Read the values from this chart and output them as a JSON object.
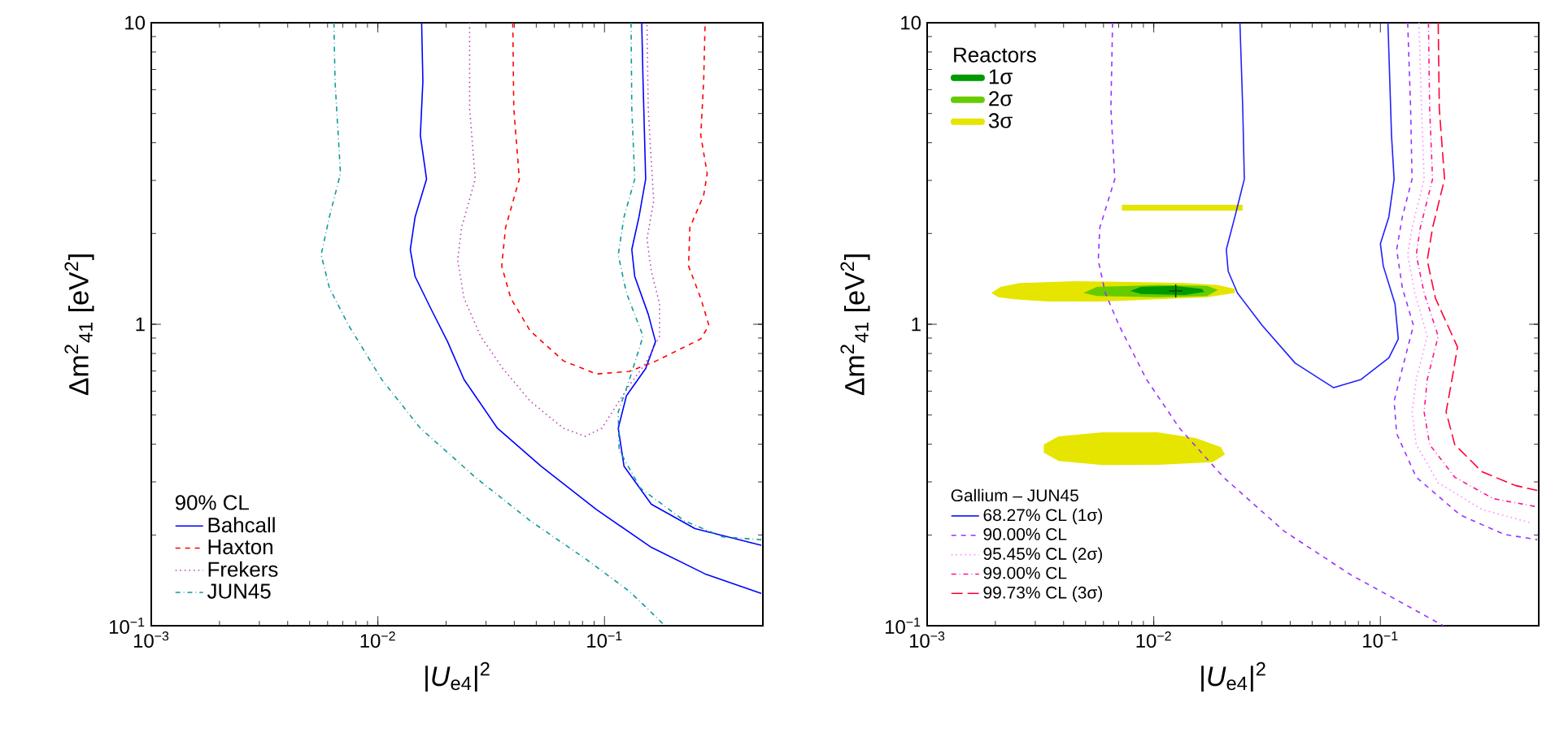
{
  "chart_data": [
    {
      "type": "line",
      "log": "xy",
      "xlabel": "|*U*$_{e4}$|$^{2}$",
      "ylabel": "Δm$^{2}$$_{41}$   [eV$^{2}$]",
      "legend": "bottom left",
      "legend_title": "90% CL",
      "xlim": [
        0.001,
        0.5
      ],
      "ylim": [
        0.1,
        10
      ],
      "xticks": [
        {
          "value": 0.001,
          "label": "10$^{−3}$"
        },
        {
          "value": 0.01,
          "label": "10$^{−2}$"
        },
        {
          "value": 0.1,
          "label": "10$^{−1}$"
        }
      ],
      "yticks": [
        {
          "value": 0.1,
          "label": "10$^{−1}$"
        },
        1,
        10
      ],
      "series": [
        {
          "name": "Bahcall",
          "color": "#0000ff",
          "line_style": "solid",
          "x": [
            0.0156,
            0.0158,
            0.0154,
            0.0164,
            0.0146,
            0.0139,
            0.0146,
            0.0172,
            0.0203,
            0.024,
            0.0337,
            0.0526,
            0.092,
            0.161,
            0.281,
            0.492,
            null,
            0.146,
            0.148,
            0.152,
            0.142,
            0.132,
            0.136,
            0.156,
            0.168,
            0.152,
            0.125,
            0.115,
            0.122,
            0.161,
            0.251,
            0.492
          ],
          "values": [
            10,
            6.4,
            4.23,
            3.03,
            2.27,
            1.77,
            1.44,
            1.12,
            0.876,
            0.656,
            0.452,
            0.338,
            0.243,
            0.182,
            0.148,
            0.128,
            null,
            10,
            6.4,
            3.03,
            2.27,
            1.77,
            1.44,
            1.08,
            0.876,
            0.713,
            0.579,
            0.452,
            0.338,
            0.253,
            0.21,
            0.185
          ]
        },
        {
          "name": "Haxton",
          "color": "#ff0000",
          "line_style": "dashed",
          "x": [
            0.0394,
            0.0398,
            0.0421,
            0.0366,
            0.0352,
            0.0386,
            0.047,
            0.0658,
            0.092,
            0.129,
            0.17,
            0.266,
            0.289,
            0.266,
            0.235,
            0.238,
            0.274,
            0.284,
            0.266,
            0.274,
            0.278
          ],
          "values": [
            10,
            5.2,
            3.03,
            2.09,
            1.56,
            1.22,
            0.951,
            0.757,
            0.684,
            0.698,
            0.757,
            0.894,
            0.991,
            1.22,
            1.56,
            2.09,
            2.68,
            3.16,
            4.23,
            6.4,
            10
          ]
        },
        {
          "name": "Frekers",
          "color": "#bb44bb",
          "line_style": "dotted",
          "x": [
            0.0254,
            0.0254,
            0.0269,
            0.0234,
            0.0225,
            0.024,
            0.0284,
            0.0356,
            0.047,
            0.0658,
            0.0822,
            0.0973,
            0.112,
            0.129,
            0.152,
            0.175,
            0.175,
            0.161,
            0.154,
            0.165,
            0.161,
            0.156,
            0.154
          ],
          "values": [
            10,
            5.2,
            3.03,
            2.09,
            1.63,
            1.22,
            0.913,
            0.713,
            0.556,
            0.452,
            0.425,
            0.452,
            0.533,
            0.629,
            0.743,
            0.913,
            1.17,
            1.5,
            1.92,
            2.57,
            3.44,
            5.2,
            10
          ]
        },
        {
          "name": "JUN45",
          "color": "#119999",
          "line_style": "dashdot",
          "x": [
            0.0064,
            0.00647,
            0.00684,
            0.00611,
            0.00562,
            0.00611,
            0.00743,
            0.0104,
            0.0154,
            0.0269,
            0.047,
            0.0822,
            0.129,
            0.185,
            null,
            0.131,
            0.132,
            0.136,
            0.122,
            0.115,
            0.125,
            0.148,
            0.129,
            0.115,
            0.116,
            0.144,
            0.225,
            0.333,
            0.492
          ],
          "values": [
            10,
            6.4,
            3.16,
            2.27,
            1.7,
            1.32,
            0.991,
            0.656,
            0.452,
            0.311,
            0.223,
            0.167,
            0.13,
            0.1,
            null,
            10,
            5.2,
            3.03,
            2.27,
            1.7,
            1.27,
            0.913,
            0.656,
            0.512,
            0.383,
            0.286,
            0.223,
            0.197,
            0.193
          ]
        }
      ]
    },
    {
      "type": "line",
      "log": "xy",
      "xlabel": "|*U*$_{e4}$|$^{2}$",
      "ylabel": "Δm$^{2}$$_{41}$   [eV$^{2}$]",
      "legend": "bottom left",
      "legend_title": "Gallium – JUN45",
      "annotations": [
        "Reactors"
      ],
      "xlim": [
        0.001,
        0.5
      ],
      "ylim": [
        0.1,
        10
      ],
      "xticks": [
        {
          "value": 0.001,
          "label": "10$^{−3}$"
        },
        {
          "value": 0.01,
          "label": "10$^{−2}$"
        },
        {
          "value": 0.1,
          "label": "10$^{−1}$"
        }
      ],
      "yticks": [
        {
          "value": 0.1,
          "label": "10$^{−1}$"
        },
        1,
        10
      ],
      "series": [
        {
          "type": "area",
          "name": "3σ",
          "color": "#e5e500",
          "x": [
            0.00192,
            0.00211,
            0.00257,
            0.0045,
            0.00787,
            0.0137,
            0.0192,
            0.0228,
            0.0228,
            0.0172,
            0.0104,
            0.00594,
            0.0034,
            0.00243,
            0.00206,
            null,
            0.00723,
            0.0247,
            0.0247,
            0.00723,
            null,
            0.00327,
            0.0038,
            0.00594,
            0.0104,
            0.0154,
            0.0198,
            0.0206,
            0.0182,
            0.0104,
            0.00594,
            0.0038,
            0.00327
          ],
          "values": [
            1.27,
            1.33,
            1.37,
            1.39,
            1.38,
            1.37,
            1.35,
            1.31,
            1.27,
            1.23,
            1.21,
            1.19,
            1.19,
            1.21,
            1.23,
            null,
            2.49,
            2.49,
            2.38,
            2.38,
            null,
            0.399,
            0.425,
            0.438,
            0.438,
            0.419,
            0.391,
            0.37,
            0.349,
            0.342,
            0.341,
            0.352,
            0.375
          ]
        },
        {
          "type": "area",
          "name": "2σ",
          "color": "#66cc00",
          "x": [
            0.00489,
            0.00562,
            0.0104,
            0.0172,
            0.0192,
            0.0172,
            0.0104,
            0.00562
          ],
          "values": [
            1.27,
            1.33,
            1.35,
            1.34,
            1.3,
            1.24,
            1.23,
            1.24
          ]
        },
        {
          "type": "area",
          "name": "1σ",
          "color": "#009900",
          "x": [
            0.00787,
            0.00879,
            0.0123,
            0.0163,
            0.0167,
            0.0137,
            0.00879
          ],
          "values": [
            1.29,
            1.33,
            1.34,
            1.31,
            1.28,
            1.25,
            1.26
          ]
        },
        {
          "type": "scatter",
          "marker": "cross",
          "color": "#004400",
          "x": [
            0.0125
          ],
          "values": [
            1.29
          ]
        },
        {
          "name": "68.27% CL (1σ)",
          "color": "#2020ff",
          "line_style": "solid",
          "x": [
            0.024,
            0.0247,
            0.0251,
            0.0228,
            0.0209,
            0.0213,
            0.0234,
            0.0301,
            0.0421,
            0.0622,
            0.0822,
            0.109,
            0.12,
            0.116,
            0.103,
            0.1,
            0.109,
            0.115,
            0.112,
            0.108
          ],
          "values": [
            10,
            5.2,
            3.03,
            2.27,
            1.77,
            1.5,
            1.27,
            0.991,
            0.743,
            0.616,
            0.656,
            0.774,
            0.894,
            1.17,
            1.56,
            1.85,
            2.27,
            3.03,
            4.23,
            10
          ]
        },
        {
          "name": "90.00% CL",
          "color": "#9933ff",
          "line_style": "dashed",
          "x": [
            0.00658,
            0.00647,
            0.00673,
            0.00578,
            0.00569,
            0.00611,
            0.00703,
            0.00929,
            0.013,
            0.0203,
            0.0376,
            0.0736,
            0.19,
            null,
            0.132,
            0.136,
            0.138,
            0.125,
            0.118,
            0.125,
            0.14,
            0.125,
            0.115,
            0.118,
            0.144,
            0.225,
            0.352,
            0.492
          ],
          "values": [
            10,
            5.2,
            3.03,
            2.09,
            1.63,
            1.27,
            0.991,
            0.656,
            0.452,
            0.311,
            0.206,
            0.148,
            0.1,
            null,
            10,
            5.2,
            3.03,
            2.27,
            1.77,
            1.32,
            0.991,
            0.713,
            0.556,
            0.434,
            0.311,
            0.233,
            0.201,
            0.193
          ]
        },
        {
          "name": "95.45% CL (2σ)",
          "color": "#ff88ff",
          "line_style": "dotted",
          "x": [
            0.148,
            0.152,
            0.156,
            0.138,
            0.132,
            0.142,
            0.161,
            0.144,
            0.138,
            0.144,
            0.18,
            0.281,
            0.465
          ],
          "values": [
            10,
            5.2,
            3.03,
            2.09,
            1.7,
            1.27,
            0.913,
            0.656,
            0.512,
            0.399,
            0.298,
            0.243,
            0.219
          ]
        },
        {
          "name": "99.00% CL",
          "color": "#ff1493",
          "line_style": "dashdot",
          "x": [
            0.163,
            0.165,
            0.17,
            0.15,
            0.144,
            0.156,
            0.18,
            0.161,
            0.156,
            0.165,
            0.213,
            0.315,
            0.492
          ],
          "values": [
            10,
            5.2,
            3.03,
            2.09,
            1.7,
            1.27,
            0.913,
            0.656,
            0.512,
            0.399,
            0.311,
            0.264,
            0.248
          ]
        },
        {
          "name": "99.73% CL (3σ)",
          "color": "#ff0033",
          "line_style": "longdashed",
          "x": [
            0.18,
            0.182,
            0.192,
            0.17,
            0.161,
            0.175,
            0.219,
            0.207,
            0.195,
            0.213,
            0.281,
            0.394,
            0.492
          ],
          "values": [
            10,
            5.2,
            3.03,
            2.09,
            1.63,
            1.22,
            0.84,
            0.656,
            0.512,
            0.399,
            0.324,
            0.292,
            0.281
          ]
        }
      ]
    }
  ]
}
